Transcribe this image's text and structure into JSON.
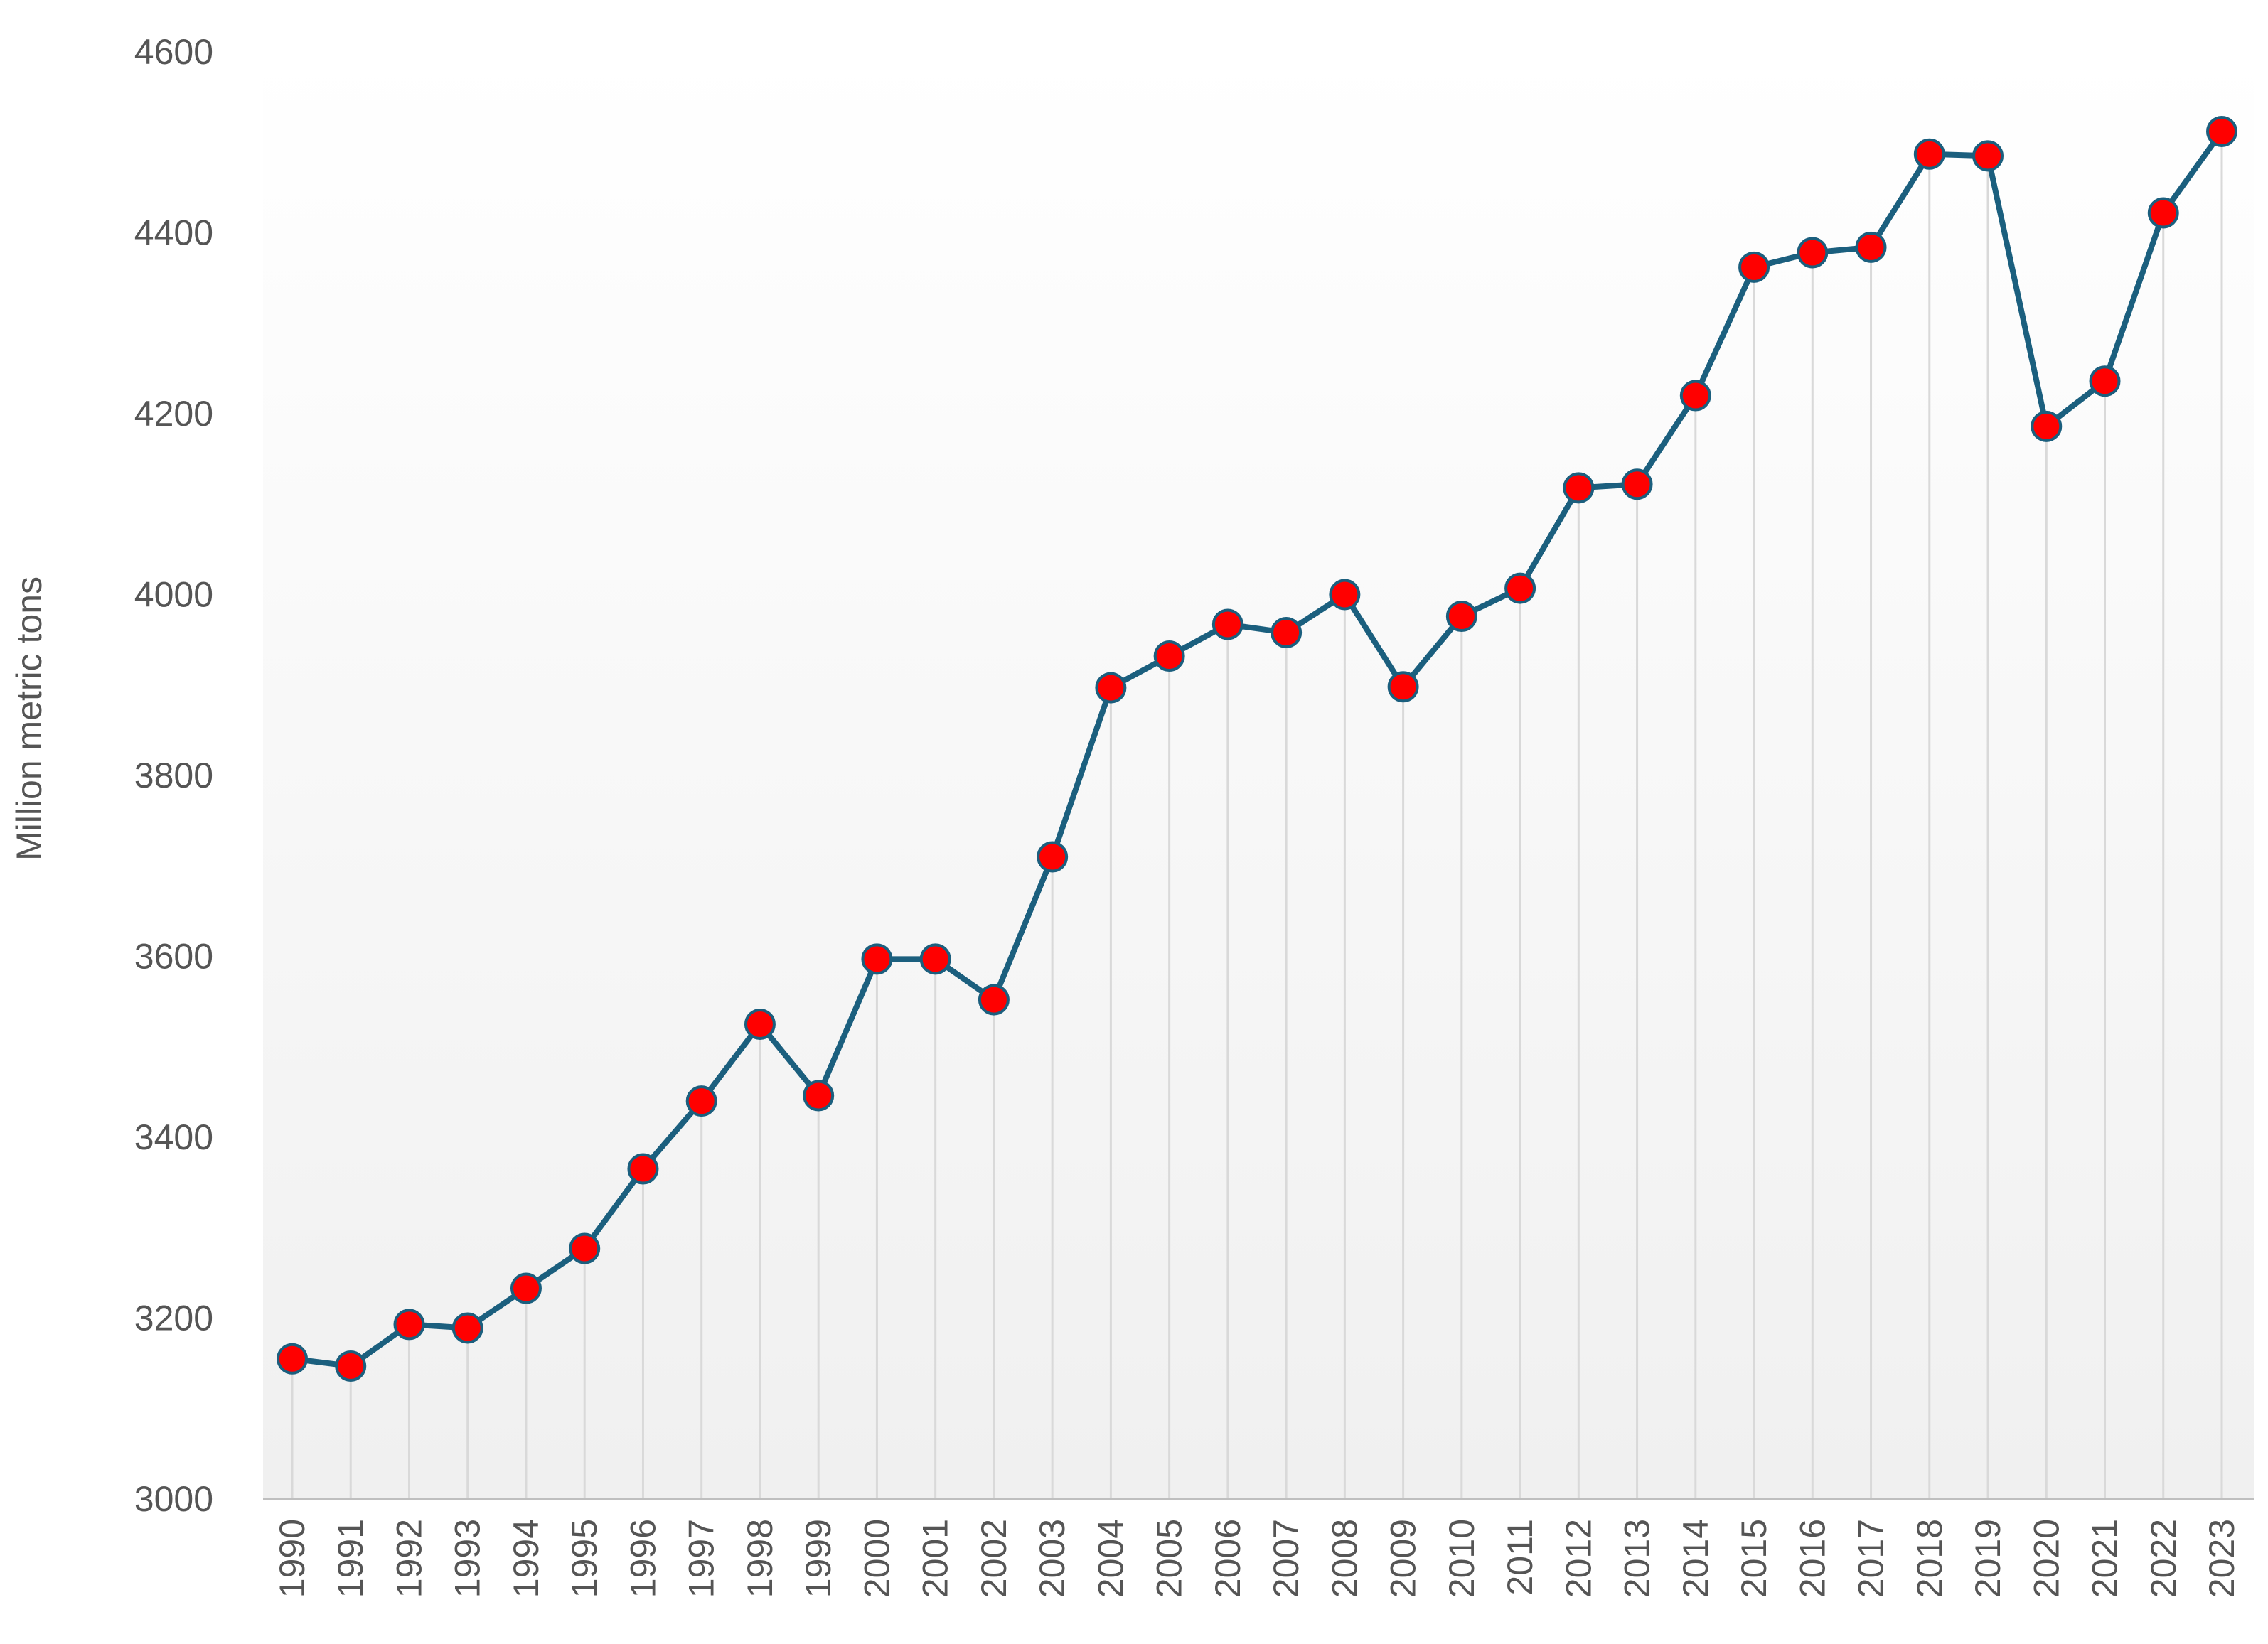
{
  "chart_data": {
    "type": "line",
    "title": "",
    "xlabel": "",
    "ylabel": "Million metric tons",
    "ylim": [
      3000,
      4600
    ],
    "yticks": [
      3000,
      3200,
      3400,
      3600,
      3800,
      4000,
      4200,
      4400,
      4600
    ],
    "grid": "vertical drop lines at each year",
    "legend": "none",
    "x": [
      "1990",
      "1991",
      "1992",
      "1993",
      "1994",
      "1995",
      "1996",
      "1997",
      "1998",
      "1999",
      "2000",
      "2001",
      "2002",
      "2003",
      "2004",
      "2005",
      "2006",
      "2007",
      "2008",
      "2009",
      "2010",
      "2011",
      "2012",
      "2013",
      "2014",
      "2015",
      "2016",
      "2017",
      "2018",
      "2019",
      "2020",
      "2021",
      "2022",
      "2023"
    ],
    "values": [
      3155,
      3147,
      3193,
      3189,
      3233,
      3277,
      3365,
      3440,
      3525,
      3446,
      3597,
      3597,
      3552,
      3710,
      3897,
      3932,
      3967,
      3958,
      4000,
      3898,
      3976,
      4007,
      4118,
      4122,
      4220,
      4362,
      4378,
      4384,
      4487,
      4485,
      4186,
      4236,
      4422,
      4512
    ],
    "colors": {
      "line": "#1b5f7e",
      "marker_fill": "#ff0000",
      "marker_stroke": "#1b5f7e",
      "drop_line": "#d9d9d9",
      "axis": "#bfbfbf",
      "text": "#555555",
      "plot_bg_top": "#ffffff",
      "plot_bg_bottom": "#f0f0f0"
    }
  }
}
